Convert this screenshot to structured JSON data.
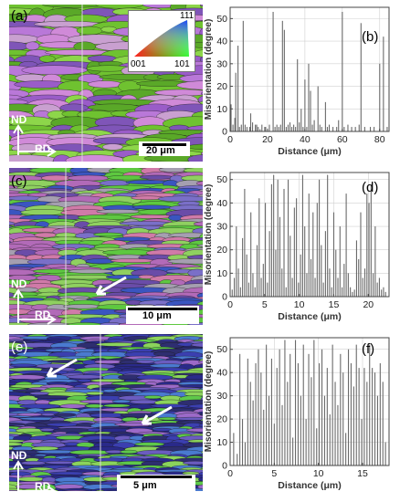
{
  "panels": {
    "a": "(a)",
    "b": "(b)",
    "c": "(c)",
    "d": "(d)",
    "e": "(e)",
    "f": "(f)"
  },
  "maps": [
    {
      "nd": "ND",
      "rd": "RD",
      "scale": "20 μm",
      "palette": [
        "#6fc230",
        "#8dd64a",
        "#5aa828",
        "#b978d8",
        "#9a5cc8",
        "#d08ad8",
        "#7f55b8",
        "#c9a0d0"
      ]
    },
    {
      "nd": "ND",
      "rd": "RD",
      "scale": "10 μm",
      "palette": [
        "#5ec840",
        "#7a6fc8",
        "#b26ab8",
        "#3a55c0",
        "#d07aa8",
        "#8fd060",
        "#a59fb0",
        "#6a4ca8"
      ]
    },
    {
      "nd": "ND",
      "rd": "RD",
      "scale": "5 μm",
      "palette": [
        "#2a2a8a",
        "#3b3fb0",
        "#5ec84a",
        "#8bd35c",
        "#6b5cc0",
        "#4a7ad0",
        "#9c6ac8",
        "#2e2e70"
      ]
    }
  ],
  "ipf_key": {
    "top": "111",
    "left": "001",
    "right": "101"
  },
  "chart_data": [
    {
      "type": "bar",
      "panel": "(b)",
      "xlabel": "Distance (μm)",
      "ylabel": "Misorientation (degree)",
      "xlim": [
        0,
        85
      ],
      "ylim": [
        0,
        55
      ],
      "xticks": [
        0,
        20,
        40,
        60,
        80
      ],
      "yticks": [
        0,
        10,
        20,
        30,
        40,
        50
      ],
      "grid": true,
      "x": [
        0.5,
        1.5,
        2.5,
        3,
        4.2,
        5,
        6,
        7,
        8,
        9,
        10.5,
        11,
        12,
        13.5,
        14.2,
        15,
        16,
        17,
        18.5,
        19,
        21,
        23,
        24,
        25,
        26,
        27,
        28,
        29,
        30,
        31,
        32,
        33,
        34,
        35,
        36,
        37,
        38,
        39,
        40,
        41,
        42,
        43,
        44,
        45,
        47,
        48,
        49,
        51,
        52,
        53,
        55,
        57,
        58,
        60,
        61,
        63,
        65,
        67,
        69,
        70,
        72,
        75,
        77,
        80,
        82,
        84
      ],
      "values": [
        12,
        3,
        6,
        26,
        38,
        2,
        3,
        49,
        3,
        2,
        2,
        8,
        4,
        3,
        3,
        2,
        1,
        3,
        2,
        2,
        3,
        53,
        2,
        3,
        2,
        3,
        49,
        45,
        2,
        3,
        4,
        2,
        3,
        2,
        32,
        4,
        10,
        2,
        23,
        2,
        30,
        18,
        3,
        5,
        20,
        3,
        2,
        13,
        2,
        3,
        2,
        2,
        5,
        53,
        2,
        3,
        2,
        2,
        3,
        48,
        2,
        2,
        2,
        30,
        42,
        2
      ]
    },
    {
      "type": "bar",
      "panel": "(d)",
      "xlabel": "Distance (μm)",
      "ylabel": "Misorientation (degree)",
      "xlim": [
        0,
        23
      ],
      "ylim": [
        0,
        53
      ],
      "xticks": [
        0,
        5,
        10,
        15,
        20
      ],
      "yticks": [
        0,
        10,
        20,
        30,
        40,
        50
      ],
      "grid": true,
      "x": [
        0.3,
        0.6,
        0.9,
        1.2,
        1.5,
        1.8,
        2.1,
        2.4,
        2.7,
        3.0,
        3.3,
        3.6,
        3.9,
        4.2,
        4.5,
        4.8,
        5.1,
        5.4,
        5.7,
        6.0,
        6.3,
        6.6,
        6.9,
        7.2,
        7.5,
        7.8,
        8.1,
        8.4,
        8.7,
        9.0,
        9.3,
        9.6,
        9.9,
        10.2,
        10.5,
        10.8,
        11.1,
        11.4,
        11.7,
        12.0,
        12.3,
        12.6,
        12.9,
        13.2,
        13.5,
        13.8,
        14.1,
        14.4,
        14.7,
        15.0,
        15.3,
        15.6,
        15.9,
        16.2,
        16.5,
        16.8,
        17.1,
        17.4,
        17.7,
        18.0,
        18.3,
        18.6,
        18.9,
        19.2,
        19.5,
        19.8,
        20.1,
        20.4,
        20.7,
        21.0,
        21.3,
        21.6,
        21.9,
        22.2,
        22.5
      ],
      "values": [
        3,
        8,
        30,
        12,
        4,
        25,
        46,
        18,
        6,
        36,
        10,
        4,
        22,
        42,
        8,
        14,
        40,
        6,
        28,
        48,
        52,
        20,
        50,
        34,
        12,
        46,
        4,
        50,
        26,
        8,
        38,
        42,
        6,
        18,
        52,
        30,
        10,
        44,
        16,
        36,
        8,
        40,
        50,
        22,
        6,
        28,
        52,
        12,
        4,
        36,
        20,
        8,
        30,
        4,
        14,
        44,
        10,
        4,
        2,
        3,
        24,
        16,
        36,
        8,
        12,
        44,
        40,
        48,
        10,
        30,
        6,
        8,
        3,
        4,
        2
      ]
    },
    {
      "type": "bar",
      "panel": "(f)",
      "xlabel": "Distance (μm)",
      "ylabel": "Misorientation (degree)",
      "xlim": [
        0,
        18
      ],
      "ylim": [
        0,
        55
      ],
      "xticks": [
        0,
        5,
        10,
        15
      ],
      "yticks": [
        0,
        10,
        20,
        30,
        40,
        50
      ],
      "grid": true,
      "x": [
        0.4,
        0.8,
        1.1,
        1.4,
        1.7,
        2.0,
        2.3,
        2.6,
        2.9,
        3.2,
        3.5,
        3.8,
        4.1,
        4.4,
        4.7,
        5.0,
        5.3,
        5.6,
        5.9,
        6.2,
        6.5,
        6.8,
        7.1,
        7.4,
        7.7,
        8.0,
        8.3,
        8.6,
        8.9,
        9.2,
        9.5,
        9.8,
        10.1,
        10.4,
        10.7,
        11.0,
        11.3,
        11.6,
        11.9,
        12.2,
        12.5,
        12.8,
        13.1,
        13.4,
        13.7,
        14.0,
        14.3,
        14.6,
        14.9,
        15.2,
        15.5,
        15.8,
        16.1,
        16.4,
        16.7,
        17.0,
        17.3,
        17.6
      ],
      "values": [
        14,
        5,
        48,
        20,
        10,
        46,
        36,
        28,
        44,
        50,
        40,
        24,
        52,
        30,
        46,
        18,
        42,
        50,
        26,
        54,
        36,
        48,
        12,
        54,
        44,
        30,
        52,
        20,
        48,
        38,
        54,
        16,
        44,
        50,
        30,
        42,
        22,
        52,
        36,
        26,
        48,
        40,
        14,
        50,
        44,
        34,
        52,
        42,
        20,
        42,
        36,
        52,
        42,
        40,
        30,
        44,
        36,
        10
      ]
    }
  ]
}
